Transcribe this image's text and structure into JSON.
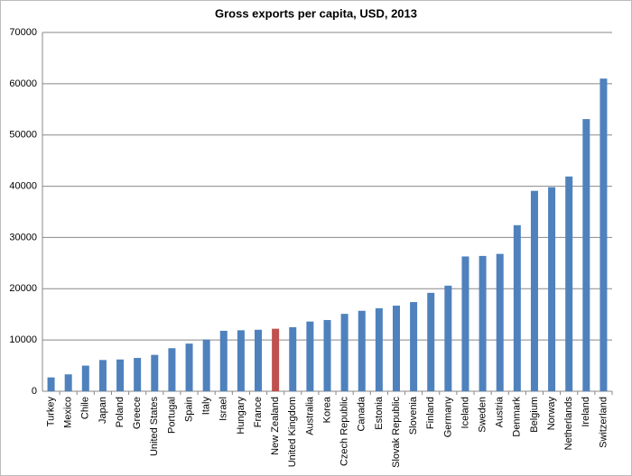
{
  "chart_data": {
    "type": "bar",
    "title": "Gross exports per capita, USD, 2013",
    "categories": [
      "Turkey",
      "Mexico",
      "Chile",
      "Japan",
      "Poland",
      "Greece",
      "United States",
      "Portugal",
      "Spain",
      "Italy",
      "Israel",
      "Hungary",
      "France",
      "New Zealand",
      "United Kingdom",
      "Australia",
      "Korea",
      "Czech Republic",
      "Canada",
      "Estonia",
      "Slovak Republic",
      "Slovenia",
      "Finland",
      "Germany",
      "Iceland",
      "Sweden",
      "Austria",
      "Denmark",
      "Belgium",
      "Norway",
      "Netherlands",
      "Ireland",
      "Switzerland"
    ],
    "values": [
      2700,
      3300,
      5000,
      6100,
      6200,
      6500,
      7100,
      8400,
      9300,
      10100,
      11800,
      11900,
      12000,
      12200,
      12500,
      13600,
      13900,
      15100,
      15700,
      16200,
      16700,
      17400,
      19200,
      20600,
      26300,
      26400,
      26800,
      32400,
      39100,
      39800,
      41900,
      53100,
      61000
    ],
    "colors": [
      "#4f81bd",
      "#4f81bd",
      "#4f81bd",
      "#4f81bd",
      "#4f81bd",
      "#4f81bd",
      "#4f81bd",
      "#4f81bd",
      "#4f81bd",
      "#4f81bd",
      "#4f81bd",
      "#4f81bd",
      "#4f81bd",
      "#c0504d",
      "#4f81bd",
      "#4f81bd",
      "#4f81bd",
      "#4f81bd",
      "#4f81bd",
      "#4f81bd",
      "#4f81bd",
      "#4f81bd",
      "#4f81bd",
      "#4f81bd",
      "#4f81bd",
      "#4f81bd",
      "#4f81bd",
      "#4f81bd",
      "#4f81bd",
      "#4f81bd",
      "#4f81bd",
      "#4f81bd",
      "#4f81bd"
    ],
    "ylim": [
      0,
      70000
    ],
    "yticks": [
      0,
      10000,
      20000,
      30000,
      40000,
      50000,
      60000,
      70000
    ],
    "grid": true
  }
}
